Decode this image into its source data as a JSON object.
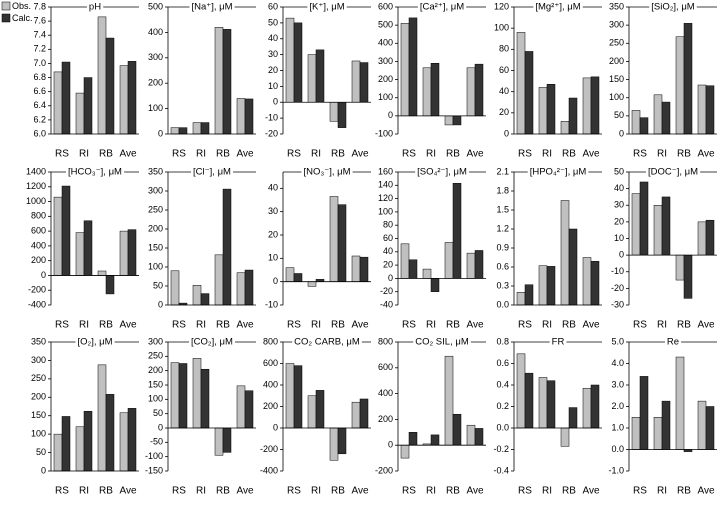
{
  "chart_data": [
    {
      "type": "bar",
      "title": "pH",
      "categories": [
        "RS",
        "RI",
        "RB",
        "Ave"
      ],
      "series": [
        {
          "name": "Obs.",
          "color": "#c0c0c0",
          "values": [
            6.88,
            6.58,
            7.66,
            6.97
          ]
        },
        {
          "name": "Calc.",
          "color": "#333333",
          "values": [
            7.02,
            6.8,
            7.36,
            7.03
          ]
        }
      ],
      "ylim": [
        6,
        7.8
      ],
      "yticks": [
        {
          "value": 6,
          "label": "6.0"
        },
        6.2,
        6.4,
        6.6,
        6.8,
        {
          "value": 7,
          "label": "7.0"
        },
        7.2,
        7.4,
        7.6,
        7.8
      ]
    },
    {
      "type": "bar",
      "title": "[Na⁺], μM",
      "categories": [
        "RS",
        "RI",
        "RB",
        "Ave"
      ],
      "series": [
        {
          "color": "#c0c0c0",
          "values": [
            25,
            45,
            420,
            140
          ]
        },
        {
          "color": "#333333",
          "values": [
            25,
            45,
            412,
            138
          ]
        }
      ],
      "ylim": [
        0,
        500
      ],
      "yticks": [
        0,
        100,
        200,
        300,
        400,
        500
      ]
    },
    {
      "type": "bar",
      "title": "[K⁺], μM",
      "categories": [
        "RS",
        "RI",
        "RB",
        "Ave"
      ],
      "series": [
        {
          "color": "#c0c0c0",
          "values": [
            53,
            30,
            -12,
            26
          ]
        },
        {
          "color": "#333333",
          "values": [
            50,
            33,
            -16,
            25
          ]
        }
      ],
      "ylim": [
        -20,
        60
      ],
      "yticks": [
        -20,
        -10,
        0,
        10,
        20,
        30,
        40,
        50,
        60
      ]
    },
    {
      "type": "bar",
      "title": "[Ca²⁺], μM",
      "categories": [
        "RS",
        "RI",
        "RB",
        "Ave"
      ],
      "series": [
        {
          "color": "#c0c0c0",
          "values": [
            510,
            265,
            -50,
            265
          ]
        },
        {
          "color": "#333333",
          "values": [
            540,
            290,
            -50,
            285
          ]
        }
      ],
      "ylim": [
        -100,
        600
      ],
      "yticks": [
        -100,
        0,
        100,
        200,
        300,
        400,
        500,
        600
      ]
    },
    {
      "type": "bar",
      "title": "[Mg²⁺], μM",
      "categories": [
        "RS",
        "RI",
        "RB",
        "Ave"
      ],
      "series": [
        {
          "color": "#c0c0c0",
          "values": [
            96,
            44,
            12,
            53
          ]
        },
        {
          "color": "#333333",
          "values": [
            78,
            47,
            34,
            54
          ]
        }
      ],
      "ylim": [
        0,
        120
      ],
      "yticks": [
        0,
        20,
        40,
        60,
        80,
        100,
        120
      ]
    },
    {
      "type": "bar",
      "title": "[SiO₂], μM",
      "categories": [
        "RS",
        "RI",
        "RB",
        "Ave"
      ],
      "series": [
        {
          "color": "#c0c0c0",
          "values": [
            65,
            108,
            268,
            135
          ]
        },
        {
          "color": "#333333",
          "values": [
            45,
            88,
            305,
            133
          ]
        }
      ],
      "ylim": [
        0,
        350
      ],
      "yticks": [
        0,
        50,
        100,
        150,
        200,
        250,
        300,
        350
      ]
    },
    {
      "type": "bar",
      "title": "[HCO₃⁻], μM",
      "categories": [
        "RS",
        "RI",
        "RB",
        "Ave"
      ],
      "series": [
        {
          "color": "#c0c0c0",
          "values": [
            1060,
            580,
            60,
            600
          ]
        },
        {
          "color": "#333333",
          "values": [
            1210,
            740,
            -250,
            620
          ]
        }
      ],
      "ylim": [
        -400,
        1400
      ],
      "yticks": [
        -400,
        -200,
        0,
        200,
        400,
        600,
        800,
        1000,
        1200,
        1400
      ]
    },
    {
      "type": "bar",
      "title": "[Cl⁻], μM",
      "categories": [
        "RS",
        "RI",
        "RB",
        "Ave"
      ],
      "series": [
        {
          "color": "#c0c0c0",
          "values": [
            90,
            52,
            132,
            85
          ]
        },
        {
          "color": "#333333",
          "values": [
            5,
            30,
            305,
            92
          ]
        }
      ],
      "ylim": [
        0,
        350
      ],
      "yticks": [
        0,
        50,
        100,
        150,
        200,
        250,
        300,
        350
      ]
    },
    {
      "type": "bar",
      "title": "[NO₃⁻], μM",
      "categories": [
        "RS",
        "RI",
        "RB",
        "Ave"
      ],
      "series": [
        {
          "color": "#c0c0c0",
          "values": [
            6,
            -2,
            36.5,
            11
          ]
        },
        {
          "color": "#333333",
          "values": [
            3.5,
            1,
            33,
            10.5
          ]
        }
      ],
      "ylim": [
        -10,
        47
      ],
      "yticks": [
        -10,
        0,
        10,
        20,
        30,
        40
      ]
    },
    {
      "type": "bar",
      "title": "[SO₄²⁻], μM",
      "categories": [
        "RS",
        "RI",
        "RB",
        "Ave"
      ],
      "series": [
        {
          "color": "#c0c0c0",
          "values": [
            52,
            14,
            54,
            38
          ]
        },
        {
          "color": "#333333",
          "values": [
            28,
            -20,
            143,
            42
          ]
        }
      ],
      "ylim": [
        -40,
        160
      ],
      "yticks": [
        -40,
        -20,
        0,
        20,
        40,
        60,
        80,
        100,
        120,
        140,
        160
      ]
    },
    {
      "type": "bar",
      "title": "[HPO₄²⁻], μM",
      "categories": [
        "RS",
        "RI",
        "RB",
        "Ave"
      ],
      "series": [
        {
          "color": "#c0c0c0",
          "values": [
            0.2,
            0.62,
            1.65,
            0.75
          ]
        },
        {
          "color": "#333333",
          "values": [
            0.32,
            0.61,
            1.2,
            0.69
          ]
        }
      ],
      "ylim": [
        0,
        2.1
      ],
      "yticks": [
        {
          "value": 0,
          "label": "0.0"
        },
        0.3,
        0.6,
        0.9,
        1.2,
        1.5,
        1.8,
        2.1
      ]
    },
    {
      "type": "bar",
      "title": "[DOC⁻], μM",
      "categories": [
        "RS",
        "RI",
        "RB",
        "Ave"
      ],
      "series": [
        {
          "color": "#c0c0c0",
          "values": [
            37,
            30,
            -15,
            20
          ]
        },
        {
          "color": "#333333",
          "values": [
            44,
            35,
            -26,
            21
          ]
        }
      ],
      "ylim": [
        -30,
        50
      ],
      "yticks": [
        -30,
        -20,
        -10,
        0,
        10,
        20,
        30,
        40,
        50
      ]
    },
    {
      "type": "bar",
      "title": "[O₂], μM",
      "categories": [
        "RS",
        "RI",
        "RB",
        "Ave"
      ],
      "series": [
        {
          "color": "#c0c0c0",
          "values": [
            100,
            120,
            288,
            158
          ]
        },
        {
          "color": "#333333",
          "values": [
            148,
            162,
            208,
            170
          ]
        }
      ],
      "ylim": [
        0,
        350
      ],
      "yticks": [
        0,
        50,
        100,
        150,
        200,
        250,
        300,
        350
      ]
    },
    {
      "type": "bar",
      "title": "[CO₂], μM",
      "categories": [
        "RS",
        "RI",
        "RB",
        "Ave"
      ],
      "series": [
        {
          "color": "#c0c0c0",
          "values": [
            228,
            243,
            -95,
            147
          ]
        },
        {
          "color": "#333333",
          "values": [
            225,
            205,
            -85,
            130
          ]
        }
      ],
      "ylim": [
        -150,
        300
      ],
      "yticks": [
        -150,
        -100,
        -50,
        0,
        50,
        100,
        150,
        200,
        250,
        300
      ]
    },
    {
      "type": "bar",
      "title": "CO₂ CARB, μM",
      "categories": [
        "RS",
        "RI",
        "RB",
        "Ave"
      ],
      "series": [
        {
          "color": "#c0c0c0",
          "values": [
            600,
            300,
            -300,
            240
          ]
        },
        {
          "color": "#333333",
          "values": [
            580,
            350,
            -240,
            270
          ]
        }
      ],
      "ylim": [
        -400,
        800
      ],
      "yticks": [
        -400,
        -200,
        0,
        200,
        400,
        600,
        800
      ]
    },
    {
      "type": "bar",
      "title": "CO₂ SIL, μM",
      "categories": [
        "RS",
        "RI",
        "RB",
        "Ave"
      ],
      "series": [
        {
          "color": "#c0c0c0",
          "values": [
            -100,
            10,
            690,
            155
          ]
        },
        {
          "color": "#333333",
          "values": [
            100,
            80,
            240,
            130
          ]
        }
      ],
      "ylim": [
        -200,
        800
      ],
      "yticks": [
        -200,
        0,
        200,
        400,
        600,
        800
      ]
    },
    {
      "type": "bar",
      "title": "FR",
      "categories": [
        "RS",
        "RI",
        "RB",
        "Ave"
      ],
      "series": [
        {
          "color": "#c0c0c0",
          "values": [
            0.69,
            0.47,
            -0.17,
            0.37
          ]
        },
        {
          "color": "#333333",
          "values": [
            0.51,
            0.44,
            0.19,
            0.4
          ]
        }
      ],
      "ylim": [
        -0.4,
        0.8
      ],
      "yticks": [
        -0.4,
        -0.2,
        {
          "value": 0,
          "label": "0.0"
        },
        0.2,
        0.4,
        0.6,
        0.8
      ]
    },
    {
      "type": "bar",
      "title": "Re",
      "categories": [
        "RS",
        "RI",
        "RB",
        "Ave"
      ],
      "series": [
        {
          "color": "#c0c0c0",
          "values": [
            1.5,
            1.5,
            4.3,
            2.25
          ]
        },
        {
          "color": "#333333",
          "values": [
            3.4,
            2.25,
            -0.1,
            2
          ]
        }
      ],
      "ylim": [
        -1,
        5
      ],
      "yticks": [
        {
          "value": -1,
          "label": "-1.0"
        },
        {
          "value": 0,
          "label": "0.0"
        },
        {
          "value": 1,
          "label": "1.0"
        },
        {
          "value": 2,
          "label": "2.0"
        },
        {
          "value": 3,
          "label": "3.0"
        },
        {
          "value": 4,
          "label": "4.0"
        },
        {
          "value": 5,
          "label": "5.0"
        }
      ]
    }
  ]
}
